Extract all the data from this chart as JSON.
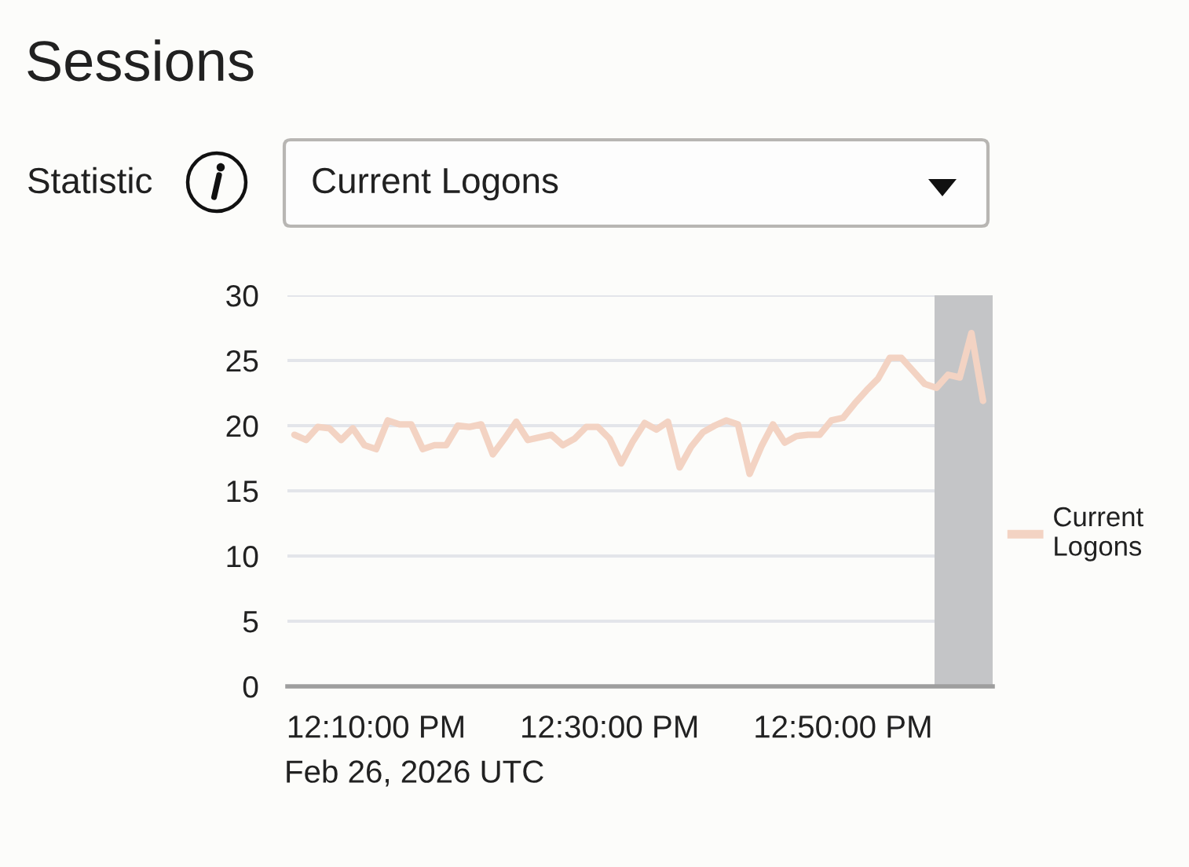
{
  "chart_data": {
    "type": "line",
    "title": "Sessions",
    "annotations": [
      "Statistic",
      "Current Logons"
    ],
    "xlabel": "Feb 26, 2026 UTC",
    "x": [
      12.05,
      12.0667,
      12.0833,
      12.1,
      12.1167,
      12.1333,
      12.15,
      12.1667,
      12.1833,
      12.2,
      12.2167,
      12.2333,
      12.25,
      12.2667,
      12.2833,
      12.3,
      12.3167,
      12.3333,
      12.35,
      12.3667,
      12.3833,
      12.4,
      12.4167,
      12.4333,
      12.45,
      12.4667,
      12.4833,
      12.5,
      12.5167,
      12.5333,
      12.55,
      12.5667,
      12.5833,
      12.6,
      12.6167,
      12.6333,
      12.65,
      12.6667,
      12.6833,
      12.7,
      12.7167,
      12.7333,
      12.75,
      12.7667,
      12.7833,
      12.8,
      12.8167,
      12.8333,
      12.85,
      12.8667,
      12.8833,
      12.9,
      12.9167,
      12.9333,
      12.95,
      12.9667,
      12.9833,
      13.0,
      13.0167,
      13.0333
    ],
    "series": [
      {
        "name": "Current Logons",
        "color": "#f3d3c3",
        "values": [
          19.3,
          18.9,
          19.9,
          19.8,
          18.9,
          19.8,
          18.5,
          18.2,
          20.4,
          20.1,
          20.1,
          18.2,
          18.5,
          18.5,
          20.0,
          19.9,
          20.1,
          17.8,
          19.0,
          20.3,
          18.9,
          19.1,
          19.3,
          18.5,
          19.0,
          19.9,
          19.9,
          19.0,
          17.1,
          18.8,
          20.2,
          19.7,
          20.3,
          16.8,
          18.4,
          19.5,
          20.0,
          20.4,
          20.1,
          16.3,
          18.4,
          20.1,
          18.7,
          19.2,
          19.3,
          19.3,
          20.4,
          20.6,
          21.7,
          22.7,
          23.6,
          25.2,
          25.2,
          24.2,
          23.2,
          22.9,
          23.9,
          23.7,
          27.1,
          21.9
        ]
      }
    ],
    "xlim": [
      12.04,
      13.047
    ],
    "xticks": [
      {
        "value": 12.1667,
        "label": "12:10:00 PM"
      },
      {
        "value": 12.5,
        "label": "12:30:00 PM"
      },
      {
        "value": 12.8333,
        "label": "12:50:00 PM"
      }
    ],
    "ylim": [
      0,
      30
    ],
    "yticks": [
      0,
      5,
      10,
      15,
      20,
      25,
      30
    ],
    "bands": [
      {
        "axis": "x",
        "from": 12.964,
        "to": 13.047,
        "color": "#c4c5c7"
      }
    ],
    "grid": "y",
    "legend": "right",
    "line_style": "solid"
  }
}
